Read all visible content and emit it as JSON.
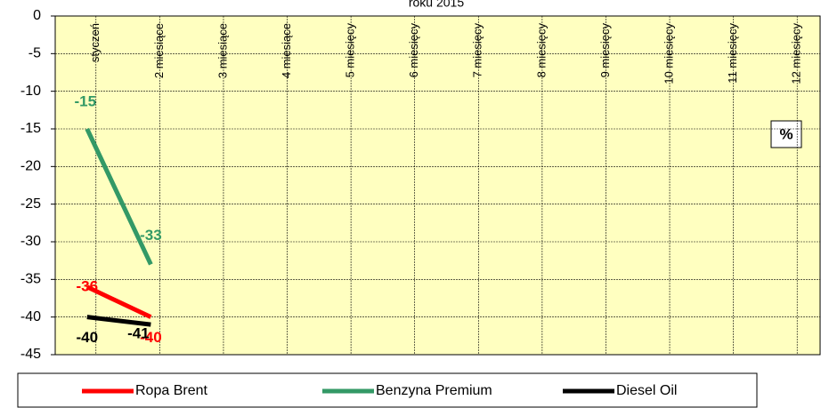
{
  "chart_data": {
    "type": "line",
    "title": "roku 2015",
    "annotation": "%",
    "categories": [
      "styczeń",
      "2 miesiące",
      "3 miesiące",
      "4 miesiące",
      "5 miesięcy",
      "6 miesięcy",
      "7 miesięcy",
      "8 miesięcy",
      "9 miesięcy",
      "10 miesięcy",
      "11 miesięcy",
      "12 miesięcy"
    ],
    "series": [
      {
        "name": "Ropa Brent",
        "color": "#ff0000",
        "values": [
          -36,
          -40,
          null,
          null,
          null,
          null,
          null,
          null,
          null,
          null,
          null,
          null
        ]
      },
      {
        "name": "Benzyna Premium",
        "color": "#339966",
        "values": [
          -15,
          -33,
          null,
          null,
          null,
          null,
          null,
          null,
          null,
          null,
          null,
          null
        ]
      },
      {
        "name": "Diesel Oil",
        "color": "#000000",
        "values": [
          -40,
          -41,
          null,
          null,
          null,
          null,
          null,
          null,
          null,
          null,
          null,
          null
        ]
      }
    ],
    "ylim": [
      -45,
      0
    ],
    "yticks": [
      0,
      -5,
      -10,
      -15,
      -20,
      -25,
      -30,
      -35,
      -40,
      -45
    ],
    "grid": true
  }
}
